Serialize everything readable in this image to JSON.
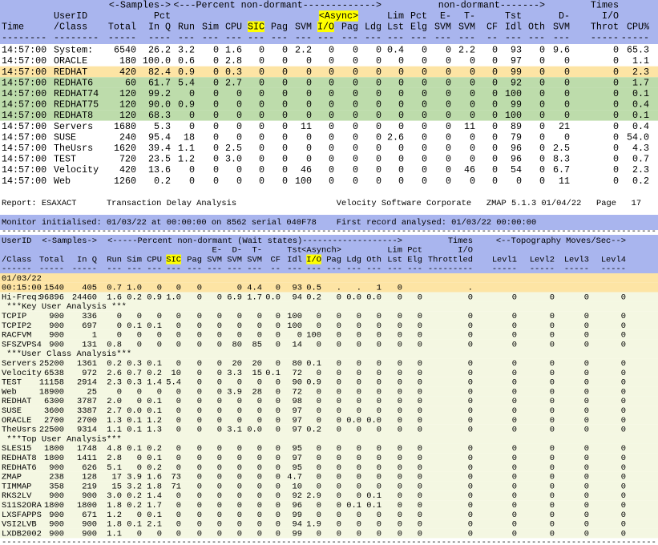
{
  "top": {
    "header_color": "#a9b5ee",
    "header": [
      [
        null,
        null,
        null,
        "<-Samples->",
        null,
        null,
        null,
        null,
        null,
        null,
        null,
        null,
        "<---Percent non-dormant------------->",
        null,
        null,
        null,
        null,
        null,
        null,
        "non-dormant------->",
        null,
        "Times"
      ],
      [
        null,
        "UserID",
        null,
        "Pct",
        null,
        null,
        null,
        null,
        null,
        null,
        null,
        {
          "text": "<Async>",
          "highlight": "#ffff00"
        },
        null,
        "Lim",
        "Pct",
        "E-",
        "T-",
        null,
        "Tst",
        null,
        "D-",
        "I/O"
      ],
      [
        "Time",
        "/Class",
        "Total",
        "In Q",
        "Run",
        "Sim",
        "CPU",
        {
          "text": "SIC",
          "highlight": "#ffff00"
        },
        "Pag",
        "SVM",
        {
          "text": "I/O",
          "highlight": "#ffff00"
        },
        "Pag",
        "Ldg",
        "Lst",
        "Elg",
        "SVM",
        "SVM",
        "CF",
        "Idl",
        "Oth",
        "SVM",
        "Throt",
        "CPU%"
      ],
      [
        "--------",
        "--------",
        "-----",
        "----",
        "---",
        "---",
        "---",
        "---",
        "---",
        "---",
        "---",
        "---",
        "---",
        "---",
        "---",
        "---",
        "---",
        "--",
        "---",
        "---",
        "---",
        "-----",
        "-----"
      ]
    ],
    "rows": [
      [
        "14:57:00",
        "System:",
        "6540",
        "26.2",
        "3.2",
        "0",
        "1.6",
        "0",
        "0",
        "2.2",
        "0",
        "0",
        "0",
        "0.4",
        "0",
        "0",
        "2.2",
        "0",
        "93",
        "0",
        "9.6",
        "0",
        "65.3"
      ],
      [
        "14:57:00",
        "ORACLE",
        "180",
        "100.0",
        "0.6",
        "0",
        "2.8",
        "0",
        "0",
        "0",
        "0",
        "0",
        "0",
        "0",
        "0",
        "0",
        "0",
        "0",
        "97",
        "0",
        "0",
        "0",
        "1.1"
      ],
      [
        "14:57:00",
        "REDHAT",
        "420",
        "82.4",
        "0.9",
        "0",
        "0.3",
        "0",
        "0",
        "0",
        "0",
        "0",
        "0",
        "0",
        "0",
        "0",
        "0",
        "0",
        "99",
        "0",
        "0",
        "0",
        "2.3"
      ],
      [
        "14:57:00",
        "REDHAT6",
        "60",
        "61.7",
        "5.4",
        "0",
        "2.7",
        "0",
        "0",
        "0",
        "0",
        "0",
        "0",
        "0",
        "0",
        "0",
        "0",
        "0",
        "92",
        "0",
        "0",
        "0",
        "1.7"
      ],
      [
        "14:57:00",
        "REDHAT74",
        "120",
        "99.2",
        "0",
        "0",
        "0",
        "0",
        "0",
        "0",
        "0",
        "0",
        "0",
        "0",
        "0",
        "0",
        "0",
        "0",
        "100",
        "0",
        "0",
        "0",
        "0.1"
      ],
      [
        "14:57:00",
        "REDHAT75",
        "120",
        "90.0",
        "0.9",
        "0",
        "0",
        "0",
        "0",
        "0",
        "0",
        "0",
        "0",
        "0",
        "0",
        "0",
        "0",
        "0",
        "99",
        "0",
        "0",
        "0",
        "0.4"
      ],
      [
        "14:57:00",
        "REDHAT8",
        "120",
        "68.3",
        "0",
        "0",
        "0",
        "0",
        "0",
        "0",
        "0",
        "0",
        "0",
        "0",
        "0",
        "0",
        "0",
        "0",
        "100",
        "0",
        "0",
        "0",
        "0.1"
      ],
      [
        "14:57:00",
        "Servers",
        "1680",
        "5.3",
        "0",
        "0",
        "0",
        "0",
        "0",
        "11",
        "0",
        "0",
        "0",
        "0",
        "0",
        "0",
        "11",
        "0",
        "89",
        "0",
        "21",
        "0",
        "0.4"
      ],
      [
        "14:57:00",
        "SUSE",
        "240",
        "95.4",
        "18",
        "0",
        "0",
        "0",
        "0",
        "0",
        "0",
        "0",
        "0",
        "2.6",
        "0",
        "0",
        "0",
        "0",
        "79",
        "0",
        "0",
        "0",
        "54.0"
      ],
      [
        "14:57:00",
        "TheUsrs",
        "1620",
        "39.4",
        "1.1",
        "0",
        "2.5",
        "0",
        "0",
        "0",
        "0",
        "0",
        "0",
        "0",
        "0",
        "0",
        "0",
        "0",
        "96",
        "0",
        "2.5",
        "0",
        "4.3"
      ],
      [
        "14:57:00",
        "TEST",
        "720",
        "23.5",
        "1.2",
        "0",
        "3.0",
        "0",
        "0",
        "0",
        "0",
        "0",
        "0",
        "0",
        "0",
        "0",
        "0",
        "0",
        "96",
        "0",
        "8.3",
        "0",
        "0.7"
      ],
      [
        "14:57:00",
        "Velocity",
        "420",
        "13.6",
        "0",
        "0",
        "0",
        "0",
        "0",
        "46",
        "0",
        "0",
        "0",
        "0",
        "0",
        "0",
        "46",
        "0",
        "54",
        "0",
        "6.7",
        "0",
        "2.3"
      ],
      [
        "14:57:00",
        "Web",
        "1260",
        "0.2",
        "0",
        "0",
        "0",
        "0",
        "0",
        "100",
        "0",
        "0",
        "0",
        "0",
        "0",
        "0",
        "0",
        "0",
        "0",
        "0",
        "11",
        "0",
        "0.2"
      ]
    ],
    "row_colors": [
      "#ffffff",
      "#ffffff",
      "#fde4a4",
      "#bddcab",
      "#bddcab",
      "#bddcab",
      "#bddcab",
      "#ffffff",
      "#ffffff",
      "#ffffff",
      "#ffffff",
      "#ffffff",
      "#ffffff"
    ]
  },
  "bottom": {
    "report": "Report: ESAXACT      Transaction Delay Analysis                    Velocity Software Corporate   ZMAP 5.1.3 01/04/22   Page   17",
    "monitor": "Monitor initialised: 01/03/22 at 00:00:00 on 8562 serial 040F78    First record analysed: 01/03/22 00:00:00",
    "rule": "-----------------------------------------------------------------------------------------------------------------------------------",
    "header_color": "#a9b5ee",
    "header": [
      [
        "UserID",
        null,
        "<-Samples->",
        null,
        null,
        null,
        null,
        null,
        null,
        null,
        null,
        null,
        null,
        null,
        null,
        null,
        null,
        "<-----Percent non-dormant (Wait states)------------------->",
        null,
        "Times",
        null,
        null,
        null,
        "<--Topography Moves/Sec-->"
      ],
      [
        null,
        null,
        null,
        null,
        null,
        null,
        null,
        null,
        "E-",
        "D-",
        "T-",
        null,
        "Tst",
        null,
        "<Asynch>",
        null,
        null,
        "Lim",
        "Pct",
        "I/O"
      ],
      [
        "/Class",
        "Total",
        "In Q",
        "Run",
        "Sim",
        "CPU",
        {
          "text": "SIC",
          "highlight": "#ffff00"
        },
        "Pag",
        "SVM",
        "SVM",
        "SVM",
        "CF",
        "Idl",
        {
          "text": "I/O",
          "highlight": "#ffff00"
        },
        "Pag",
        "Ldg",
        "Oth",
        "Lst",
        "Elg",
        "Throttled",
        "Levl1",
        "Levl2",
        "Levl3",
        "Levl4"
      ],
      [
        "------",
        "-----",
        "-----",
        "---",
        "---",
        "---",
        "---",
        "---",
        "---",
        "---",
        "---",
        "--",
        "---",
        "---",
        "---",
        "---",
        "---",
        "---",
        "---",
        "---------",
        "-----",
        "-----",
        "-----",
        "-----"
      ]
    ],
    "rows": [
      [
        "01/03/22"
      ],
      [
        "00:15:00",
        "1540",
        "405",
        "0.7",
        "1.0",
        "0",
        "0",
        "0",
        null,
        "0",
        "4.4",
        "0",
        "93",
        "0.5",
        ".",
        ".",
        "1",
        "0",
        null,
        "."
      ],
      [
        "Hi-Freq:",
        "96896",
        "24460",
        "1.6",
        "0.2",
        "0.9",
        "1.0",
        "0",
        "0",
        "6.9",
        "1.7",
        "0.0",
        "94",
        "0.2",
        "0",
        "0.0",
        "0.0",
        "0",
        "0",
        "0",
        "0",
        "0",
        "0",
        "0"
      ],
      [
        " ***Key User Analysis ***"
      ],
      [
        "TCPIP",
        "900",
        "336",
        "0",
        "0",
        "0",
        "0",
        "0",
        "0",
        "0",
        "0",
        "0",
        "100",
        "0",
        "0",
        "0",
        "0",
        "0",
        "0",
        "0",
        "0",
        "0",
        "0",
        "0"
      ],
      [
        "TCPIP2",
        "900",
        "697",
        "0",
        "0.1",
        "0.1",
        "0",
        "0",
        "0",
        "0",
        "0",
        "0",
        "100",
        "0",
        "0",
        "0",
        "0",
        "0",
        "0",
        "0",
        "0",
        "0",
        "0",
        "0"
      ],
      [
        "RACFVM",
        "900",
        "1",
        "0",
        "0",
        "0",
        "0",
        "0",
        "0",
        "0",
        "0",
        "0",
        "0",
        "100",
        "0",
        "0",
        "0",
        "0",
        "0",
        "0",
        "0",
        "0",
        "0",
        "0"
      ],
      [
        "SFSZVPS4",
        "900",
        "131",
        "0.8",
        "0",
        "0",
        "0",
        "0",
        "0",
        "80",
        "85",
        "0",
        "14",
        "0",
        "0",
        "0",
        "0",
        "0",
        "0",
        "0",
        "0",
        "0",
        "0",
        "0"
      ],
      [
        " ***User Class Analysis***"
      ],
      [
        "Servers",
        "25200",
        "1361",
        "0.2",
        "0.3",
        "0.1",
        "0",
        "0",
        "0",
        "20",
        "20",
        "0",
        "80",
        "0.1",
        "0",
        "0",
        "0",
        "0",
        "0",
        "0",
        "0",
        "0",
        "0",
        "0"
      ],
      [
        "Velocity",
        "6538",
        "972",
        "2.6",
        "0.7",
        "0.2",
        "10",
        "0",
        "0",
        "3.3",
        "15",
        "0.1",
        "72",
        "0",
        "0",
        "0",
        "0",
        "0",
        "0",
        "0",
        "0",
        "0",
        "0",
        "0"
      ],
      [
        "TEST",
        "11158",
        "2914",
        "2.3",
        "0.3",
        "1.4",
        "5.4",
        "0",
        "0",
        "0",
        "0",
        "0",
        "90",
        "0.9",
        "0",
        "0",
        "0",
        "0",
        "0",
        "0",
        "0",
        "0",
        "0",
        "0"
      ],
      [
        "Web",
        "18900",
        "25",
        "0",
        "0",
        "0",
        "0",
        "0",
        "0",
        "3.9",
        "28",
        "0",
        "72",
        "0",
        "0",
        "0",
        "0",
        "0",
        "0",
        "0",
        "0",
        "0",
        "0",
        "0"
      ],
      [
        "REDHAT",
        "6300",
        "3787",
        "2.0",
        "0",
        "0.1",
        "0",
        "0",
        "0",
        "0",
        "0",
        "0",
        "98",
        "0",
        "0",
        "0",
        "0",
        "0",
        "0",
        "0",
        "0",
        "0",
        "0",
        "0"
      ],
      [
        "SUSE",
        "3600",
        "3387",
        "2.7",
        "0.0",
        "0.1",
        "0",
        "0",
        "0",
        "0",
        "0",
        "0",
        "97",
        "0",
        "0",
        "0",
        "0",
        "0",
        "0",
        "0",
        "0",
        "0",
        "0",
        "0"
      ],
      [
        "ORACLE",
        "2700",
        "2700",
        "1.3",
        "0.1",
        "1.2",
        "0",
        "0",
        "0",
        "0",
        "0",
        "0",
        "97",
        "0",
        "0",
        "0.0",
        "0.0",
        "0",
        "0",
        "0",
        "0",
        "0",
        "0",
        "0"
      ],
      [
        "TheUsrs",
        "22500",
        "9314",
        "1.1",
        "0.1",
        "1.3",
        "0",
        "0",
        "0",
        "3.1",
        "0.0",
        "0",
        "97",
        "0.2",
        "0",
        "0",
        "0",
        "0",
        "0",
        "0",
        "0",
        "0",
        "0",
        "0"
      ],
      [
        " ***Top User Analysis***"
      ],
      [
        "SLES15",
        "1800",
        "1748",
        "4.8",
        "0.1",
        "0.2",
        "0",
        "0",
        "0",
        "0",
        "0",
        "0",
        "95",
        "0",
        "0",
        "0",
        "0",
        "0",
        "0",
        "0",
        "0",
        "0",
        "0",
        "0"
      ],
      [
        "REDHAT8",
        "1800",
        "1411",
        "2.8",
        "0",
        "0.1",
        "0",
        "0",
        "0",
        "0",
        "0",
        "0",
        "97",
        "0",
        "0",
        "0",
        "0",
        "0",
        "0",
        "0",
        "0",
        "0",
        "0",
        "0"
      ],
      [
        "REDHAT6",
        "900",
        "626",
        "5.1",
        "0",
        "0.2",
        "0",
        "0",
        "0",
        "0",
        "0",
        "0",
        "95",
        "0",
        "0",
        "0",
        "0",
        "0",
        "0",
        "0",
        "0",
        "0",
        "0",
        "0"
      ],
      [
        "ZMAP",
        "238",
        "128",
        "17",
        "3.9",
        "1.6",
        "73",
        "0",
        "0",
        "0",
        "0",
        "0",
        "4.7",
        "0",
        "0",
        "0",
        "0",
        "0",
        "0",
        "0",
        "0",
        "0",
        "0",
        "0"
      ],
      [
        "TIMMAP",
        "358",
        "219",
        "15",
        "3.2",
        "1.8",
        "71",
        "0",
        "0",
        "0",
        "0",
        "0",
        "10",
        "0",
        "0",
        "0",
        "0",
        "0",
        "0",
        "0",
        "0",
        "0",
        "0",
        "0"
      ],
      [
        "RKS2LV",
        "900",
        "900",
        "3.0",
        "0.2",
        "1.4",
        "0",
        "0",
        "0",
        "0",
        "0",
        "0",
        "92",
        "2.9",
        "0",
        "0",
        "0.1",
        "0",
        "0",
        "0",
        "0",
        "0",
        "0",
        "0"
      ],
      [
        "S11S2ORA",
        "1800",
        "1800",
        "1.8",
        "0.2",
        "1.7",
        "0",
        "0",
        "0",
        "0",
        "0",
        "0",
        "96",
        "0",
        "0",
        "0.1",
        "0.1",
        "0",
        "0",
        "0",
        "0",
        "0",
        "0",
        "0"
      ],
      [
        "LXSFAPPS",
        "900",
        "671",
        "1.2",
        "0",
        "0.1",
        "0",
        "0",
        "0",
        "0",
        "0",
        "0",
        "99",
        "0",
        "0",
        "0",
        "0",
        "0",
        "0",
        "0",
        "0",
        "0",
        "0",
        "0"
      ],
      [
        "VSI2LVB",
        "900",
        "900",
        "1.8",
        "0.1",
        "2.1",
        "0",
        "0",
        "0",
        "0",
        "0",
        "0",
        "94",
        "1.9",
        "0",
        "0",
        "0",
        "0",
        "0",
        "0",
        "0",
        "0",
        "0",
        "0"
      ],
      [
        "LXDB2002",
        "900",
        "900",
        "1.1",
        "0",
        "0",
        "0",
        "0",
        "0",
        "0",
        "0",
        "0",
        "99",
        "0",
        "0",
        "0",
        "0",
        "0",
        "0",
        "0",
        "0",
        "0",
        "0",
        "0"
      ]
    ],
    "row_colors": [
      "#fde4a4",
      "#fde4a4",
      "#f4f7e2",
      "#f4f7e2",
      "#f4f7e2",
      "#f4f7e2",
      "#f4f7e2",
      "#f4f7e2",
      "#f4f7e2",
      "#f4f7e2",
      "#f4f7e2",
      "#f4f7e2",
      "#f4f7e2",
      "#f4f7e2",
      "#f4f7e2",
      "#f4f7e2",
      "#f4f7e2",
      "#f4f7e2",
      "#f4f7e2",
      "#f4f7e2",
      "#f4f7e2",
      "#f4f7e2",
      "#f4f7e2",
      "#f4f7e2",
      "#f4f7e2",
      "#f4f7e2",
      "#f4f7e2",
      "#f4f7e2"
    ]
  }
}
